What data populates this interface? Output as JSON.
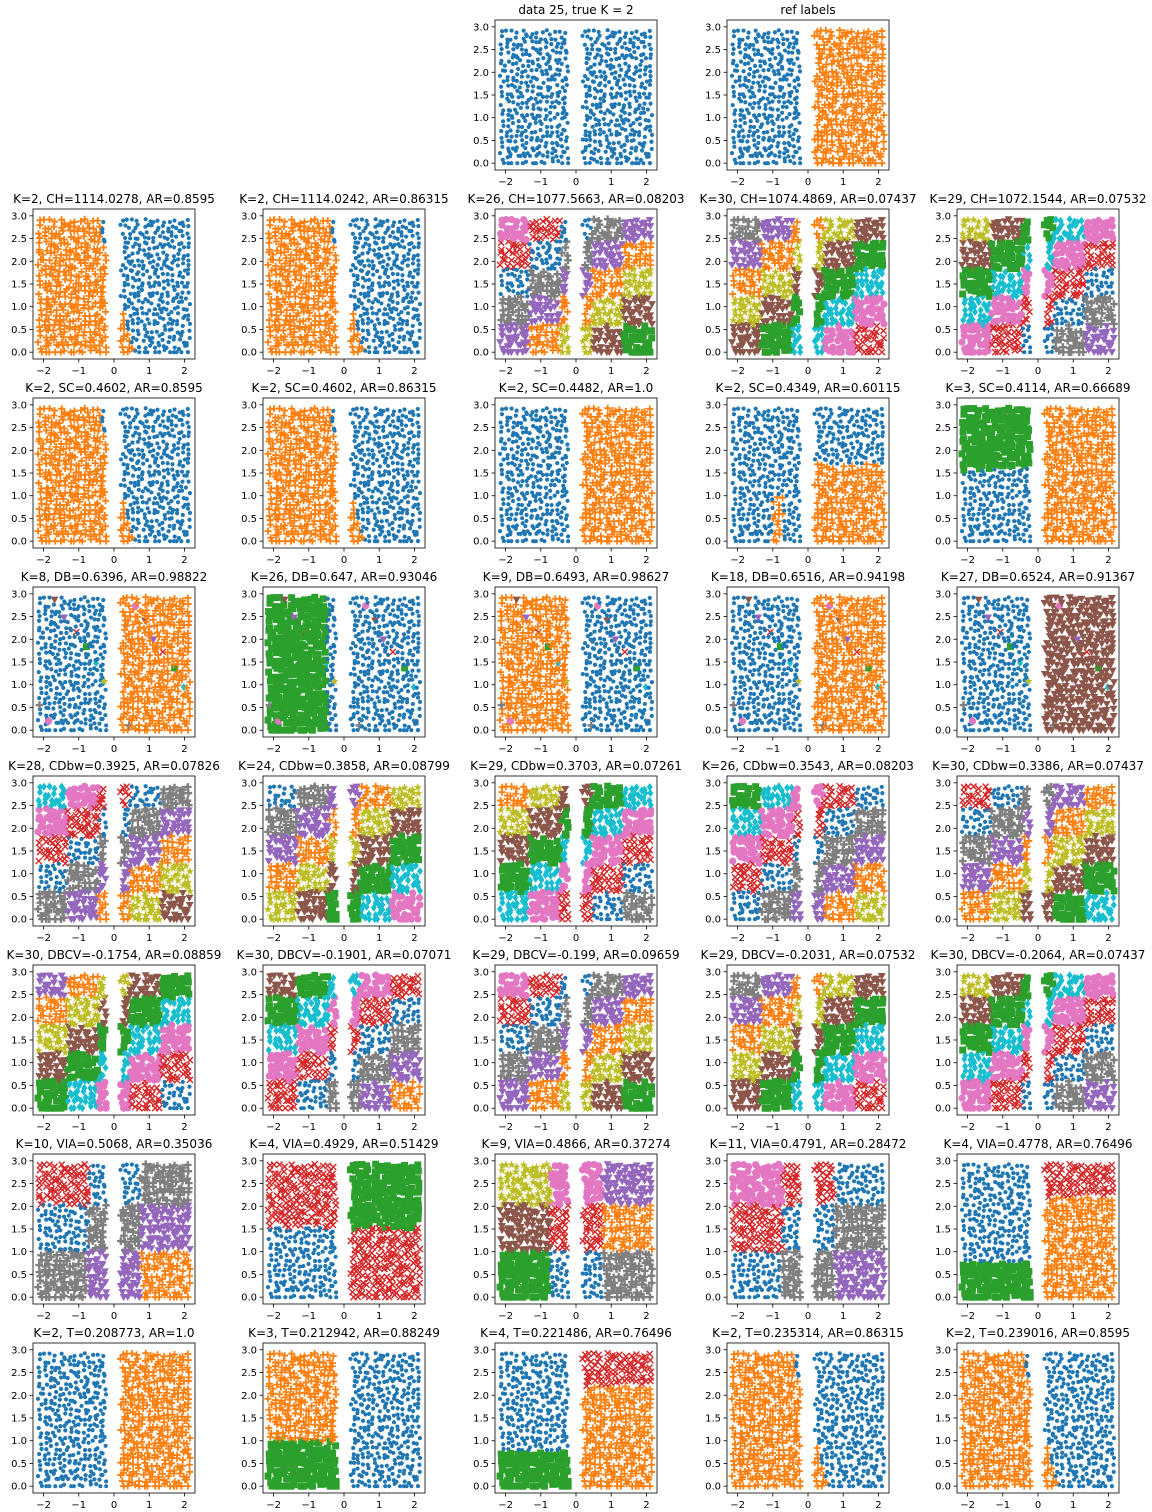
{
  "figure": {
    "axis_x_range": [
      -2.3,
      2.3
    ],
    "axis_y_range": [
      -0.15,
      3.15
    ]
  },
  "palette": [
    "#1f77b4",
    "#ff7f0e",
    "#2ca02c",
    "#d62728",
    "#9467bd",
    "#8c564b",
    "#e377c2",
    "#7f7f7f",
    "#bcbd22",
    "#17becf"
  ],
  "chart_data": [
    {
      "type": "scatter",
      "title": "data 25, true K = 2",
      "clusters": 1,
      "partition": "single",
      "xlim": [
        -2.3,
        2.3
      ],
      "ylim": [
        -0.15,
        3.15
      ],
      "xticks": [
        "−2",
        "−1",
        "0",
        "1",
        "2"
      ],
      "yticks": [
        "0.0",
        "0.5",
        "1.0",
        "1.5",
        "2.0",
        "2.5",
        "3.0"
      ]
    },
    {
      "type": "scatter",
      "title": "ref labels",
      "clusters": 2,
      "partition": "ref",
      "xlim": [
        -2.3,
        2.3
      ],
      "ylim": [
        -0.15,
        3.15
      ],
      "xticks": [
        "−2",
        "−1",
        "0",
        "1",
        "2"
      ],
      "yticks": [
        "0.0",
        "0.5",
        "1.0",
        "1.5",
        "2.0",
        "2.5",
        "3.0"
      ]
    },
    {
      "type": "scatter",
      "title": "K=2, CH=1114.0278, AR=0.8595",
      "clusters": 2,
      "partition": "diagA",
      "xlim": [
        -2.3,
        2.3
      ],
      "ylim": [
        -0.15,
        3.15
      ],
      "xticks": [
        "−2",
        "−1",
        "0",
        "1",
        "2"
      ],
      "yticks": [
        "0.0",
        "0.5",
        "1.0",
        "1.5",
        "2.0",
        "2.5",
        "3.0"
      ]
    },
    {
      "type": "scatter",
      "title": "K=2, CH=1114.0242, AR=0.86315",
      "clusters": 2,
      "partition": "diagA",
      "xlim": [
        -2.3,
        2.3
      ],
      "ylim": [
        -0.15,
        3.15
      ],
      "xticks": [
        "−2",
        "−1",
        "0",
        "1",
        "2"
      ],
      "yticks": [
        "0.0",
        "0.5",
        "1.0",
        "1.5",
        "2.0",
        "2.5",
        "3.0"
      ]
    },
    {
      "type": "scatter",
      "title": "K=26, CH=1077.5663, AR=0.08203",
      "clusters": 26,
      "partition": "grid",
      "xlim": [
        -2.3,
        2.3
      ],
      "ylim": [
        -0.15,
        3.15
      ],
      "xticks": [
        "−2",
        "−1",
        "0",
        "1",
        "2"
      ],
      "yticks": [
        "0.0",
        "0.5",
        "1.0",
        "1.5",
        "2.0",
        "2.5",
        "3.0"
      ]
    },
    {
      "type": "scatter",
      "title": "K=30, CH=1074.4869, AR=0.07437",
      "clusters": 30,
      "partition": "grid",
      "xlim": [
        -2.3,
        2.3
      ],
      "ylim": [
        -0.15,
        3.15
      ],
      "xticks": [
        "−2",
        "−1",
        "0",
        "1",
        "2"
      ],
      "yticks": [
        "0.0",
        "0.5",
        "1.0",
        "1.5",
        "2.0",
        "2.5",
        "3.0"
      ]
    },
    {
      "type": "scatter",
      "title": "K=29, CH=1072.1544, AR=0.07532",
      "clusters": 29,
      "partition": "grid",
      "xlim": [
        -2.3,
        2.3
      ],
      "ylim": [
        -0.15,
        3.15
      ],
      "xticks": [
        "−2",
        "−1",
        "0",
        "1",
        "2"
      ],
      "yticks": [
        "0.0",
        "0.5",
        "1.0",
        "1.5",
        "2.0",
        "2.5",
        "3.0"
      ]
    },
    {
      "type": "scatter",
      "title": "K=2, SC=0.4602, AR=0.8595",
      "clusters": 2,
      "partition": "diagA",
      "xlim": [
        -2.3,
        2.3
      ],
      "ylim": [
        -0.15,
        3.15
      ],
      "xticks": [
        "−2",
        "−1",
        "0",
        "1",
        "2"
      ],
      "yticks": [
        "0.0",
        "0.5",
        "1.0",
        "1.5",
        "2.0",
        "2.5",
        "3.0"
      ]
    },
    {
      "type": "scatter",
      "title": "K=2, SC=0.4602, AR=0.86315",
      "clusters": 2,
      "partition": "diagA",
      "xlim": [
        -2.3,
        2.3
      ],
      "ylim": [
        -0.15,
        3.15
      ],
      "xticks": [
        "−2",
        "−1",
        "0",
        "1",
        "2"
      ],
      "yticks": [
        "0.0",
        "0.5",
        "1.0",
        "1.5",
        "2.0",
        "2.5",
        "3.0"
      ]
    },
    {
      "type": "scatter",
      "title": "K=2, SC=0.4482, AR=1.0",
      "clusters": 2,
      "partition": "ref",
      "xlim": [
        -2.3,
        2.3
      ],
      "ylim": [
        -0.15,
        3.15
      ],
      "xticks": [
        "−2",
        "−1",
        "0",
        "1",
        "2"
      ],
      "yticks": [
        "0.0",
        "0.5",
        "1.0",
        "1.5",
        "2.0",
        "2.5",
        "3.0"
      ]
    },
    {
      "type": "scatter",
      "title": "K=2, SC=0.4349, AR=0.60115",
      "clusters": 2,
      "partition": "step",
      "xlim": [
        -2.3,
        2.3
      ],
      "ylim": [
        -0.15,
        3.15
      ],
      "xticks": [
        "−2",
        "−1",
        "0",
        "1",
        "2"
      ],
      "yticks": [
        "0.0",
        "0.5",
        "1.0",
        "1.5",
        "2.0",
        "2.5",
        "3.0"
      ]
    },
    {
      "type": "scatter",
      "title": "K=3, SC=0.4114, AR=0.66689",
      "clusters": 3,
      "partition": "wedge",
      "xlim": [
        -2.3,
        2.3
      ],
      "ylim": [
        -0.15,
        3.15
      ],
      "xticks": [
        "−2",
        "−1",
        "0",
        "1",
        "2"
      ],
      "yticks": [
        "0.0",
        "0.5",
        "1.0",
        "1.5",
        "2.0",
        "2.5",
        "3.0"
      ]
    },
    {
      "type": "scatter",
      "title": "K=8, DB=0.6396, AR=0.98822",
      "clusters": 8,
      "partition": "refOut",
      "xlim": [
        -2.3,
        2.3
      ],
      "ylim": [
        -0.15,
        3.15
      ],
      "xticks": [
        "−2",
        "−1",
        "0",
        "1",
        "2"
      ],
      "yticks": [
        "0.0",
        "0.5",
        "1.0",
        "1.5",
        "2.0",
        "2.5",
        "3.0"
      ]
    },
    {
      "type": "scatter",
      "title": "K=26, DB=0.647, AR=0.93046",
      "clusters": 26,
      "partition": "leftGreen",
      "xlim": [
        -2.3,
        2.3
      ],
      "ylim": [
        -0.15,
        3.15
      ],
      "xticks": [
        "−2",
        "−1",
        "0",
        "1",
        "2"
      ],
      "yticks": [
        "0.0",
        "0.5",
        "1.0",
        "1.5",
        "2.0",
        "2.5",
        "3.0"
      ]
    },
    {
      "type": "scatter",
      "title": "K=9, DB=0.6493, AR=0.98627",
      "clusters": 9,
      "partition": "refSwapOut",
      "xlim": [
        -2.3,
        2.3
      ],
      "ylim": [
        -0.15,
        3.15
      ],
      "xticks": [
        "−2",
        "−1",
        "0",
        "1",
        "2"
      ],
      "yticks": [
        "0.0",
        "0.5",
        "1.0",
        "1.5",
        "2.0",
        "2.5",
        "3.0"
      ]
    },
    {
      "type": "scatter",
      "title": "K=18, DB=0.6516, AR=0.94198",
      "clusters": 18,
      "partition": "refOut",
      "xlim": [
        -2.3,
        2.3
      ],
      "ylim": [
        -0.15,
        3.15
      ],
      "xticks": [
        "−2",
        "−1",
        "0",
        "1",
        "2"
      ],
      "yticks": [
        "0.0",
        "0.5",
        "1.0",
        "1.5",
        "2.0",
        "2.5",
        "3.0"
      ]
    },
    {
      "type": "scatter",
      "title": "K=27, DB=0.6524, AR=0.91367",
      "clusters": 27,
      "partition": "rightBrown",
      "xlim": [
        -2.3,
        2.3
      ],
      "ylim": [
        -0.15,
        3.15
      ],
      "xticks": [
        "−2",
        "−1",
        "0",
        "1",
        "2"
      ],
      "yticks": [
        "0.0",
        "0.5",
        "1.0",
        "1.5",
        "2.0",
        "2.5",
        "3.0"
      ]
    },
    {
      "type": "scatter",
      "title": "K=28, CDbw=0.3925, AR=0.07826",
      "clusters": 28,
      "partition": "grid",
      "xlim": [
        -2.3,
        2.3
      ],
      "ylim": [
        -0.15,
        3.15
      ],
      "xticks": [
        "−2",
        "−1",
        "0",
        "1",
        "2"
      ],
      "yticks": [
        "0.0",
        "0.5",
        "1.0",
        "1.5",
        "2.0",
        "2.5",
        "3.0"
      ]
    },
    {
      "type": "scatter",
      "title": "K=24, CDbw=0.3858, AR=0.08799",
      "clusters": 24,
      "partition": "grid",
      "xlim": [
        -2.3,
        2.3
      ],
      "ylim": [
        -0.15,
        3.15
      ],
      "xticks": [
        "−2",
        "−1",
        "0",
        "1",
        "2"
      ],
      "yticks": [
        "0.0",
        "0.5",
        "1.0",
        "1.5",
        "2.0",
        "2.5",
        "3.0"
      ]
    },
    {
      "type": "scatter",
      "title": "K=29, CDbw=0.3703, AR=0.07261",
      "clusters": 29,
      "partition": "grid",
      "xlim": [
        -2.3,
        2.3
      ],
      "ylim": [
        -0.15,
        3.15
      ],
      "xticks": [
        "−2",
        "−1",
        "0",
        "1",
        "2"
      ],
      "yticks": [
        "0.0",
        "0.5",
        "1.0",
        "1.5",
        "2.0",
        "2.5",
        "3.0"
      ]
    },
    {
      "type": "scatter",
      "title": "K=26, CDbw=0.3543, AR=0.08203",
      "clusters": 26,
      "partition": "grid",
      "xlim": [
        -2.3,
        2.3
      ],
      "ylim": [
        -0.15,
        3.15
      ],
      "xticks": [
        "−2",
        "−1",
        "0",
        "1",
        "2"
      ],
      "yticks": [
        "0.0",
        "0.5",
        "1.0",
        "1.5",
        "2.0",
        "2.5",
        "3.0"
      ]
    },
    {
      "type": "scatter",
      "title": "K=30, CDbw=0.3386, AR=0.07437",
      "clusters": 30,
      "partition": "grid",
      "xlim": [
        -2.3,
        2.3
      ],
      "ylim": [
        -0.15,
        3.15
      ],
      "xticks": [
        "−2",
        "−1",
        "0",
        "1",
        "2"
      ],
      "yticks": [
        "0.0",
        "0.5",
        "1.0",
        "1.5",
        "2.0",
        "2.5",
        "3.0"
      ]
    },
    {
      "type": "scatter",
      "title": "K=30, DBCV=-0.1754, AR=0.08859",
      "clusters": 30,
      "partition": "grid",
      "xlim": [
        -2.3,
        2.3
      ],
      "ylim": [
        -0.15,
        3.15
      ],
      "xticks": [
        "−2",
        "−1",
        "0",
        "1",
        "2"
      ],
      "yticks": [
        "0.0",
        "0.5",
        "1.0",
        "1.5",
        "2.0",
        "2.5",
        "3.0"
      ]
    },
    {
      "type": "scatter",
      "title": "K=30, DBCV=-0.1901, AR=0.07071",
      "clusters": 30,
      "partition": "grid",
      "xlim": [
        -2.3,
        2.3
      ],
      "ylim": [
        -0.15,
        3.15
      ],
      "xticks": [
        "−2",
        "−1",
        "0",
        "1",
        "2"
      ],
      "yticks": [
        "0.0",
        "0.5",
        "1.0",
        "1.5",
        "2.0",
        "2.5",
        "3.0"
      ]
    },
    {
      "type": "scatter",
      "title": "K=29, DBCV=-0.199, AR=0.09659",
      "clusters": 29,
      "partition": "grid",
      "xlim": [
        -2.3,
        2.3
      ],
      "ylim": [
        -0.15,
        3.15
      ],
      "xticks": [
        "−2",
        "−1",
        "0",
        "1",
        "2"
      ],
      "yticks": [
        "0.0",
        "0.5",
        "1.0",
        "1.5",
        "2.0",
        "2.5",
        "3.0"
      ]
    },
    {
      "type": "scatter",
      "title": "K=29, DBCV=-0.2031, AR=0.07532",
      "clusters": 29,
      "partition": "grid",
      "xlim": [
        -2.3,
        2.3
      ],
      "ylim": [
        -0.15,
        3.15
      ],
      "xticks": [
        "−2",
        "−1",
        "0",
        "1",
        "2"
      ],
      "yticks": [
        "0.0",
        "0.5",
        "1.0",
        "1.5",
        "2.0",
        "2.5",
        "3.0"
      ]
    },
    {
      "type": "scatter",
      "title": "K=30, DBCV=-0.2064, AR=0.07437",
      "clusters": 30,
      "partition": "grid",
      "xlim": [
        -2.3,
        2.3
      ],
      "ylim": [
        -0.15,
        3.15
      ],
      "xticks": [
        "−2",
        "−1",
        "0",
        "1",
        "2"
      ],
      "yticks": [
        "0.0",
        "0.5",
        "1.0",
        "1.5",
        "2.0",
        "2.5",
        "3.0"
      ]
    },
    {
      "type": "scatter",
      "title": "K=10, VIA=0.5068, AR=0.35036",
      "clusters": 10,
      "partition": "grid",
      "xlim": [
        -2.3,
        2.3
      ],
      "ylim": [
        -0.15,
        3.15
      ],
      "xticks": [
        "−2",
        "−1",
        "0",
        "1",
        "2"
      ],
      "yticks": [
        "0.0",
        "0.5",
        "1.0",
        "1.5",
        "2.0",
        "2.5",
        "3.0"
      ]
    },
    {
      "type": "scatter",
      "title": "K=4, VIA=0.4929, AR=0.51429",
      "clusters": 4,
      "partition": "grid",
      "xlim": [
        -2.3,
        2.3
      ],
      "ylim": [
        -0.15,
        3.15
      ],
      "xticks": [
        "−2",
        "−1",
        "0",
        "1",
        "2"
      ],
      "yticks": [
        "0.0",
        "0.5",
        "1.0",
        "1.5",
        "2.0",
        "2.5",
        "3.0"
      ]
    },
    {
      "type": "scatter",
      "title": "K=9, VIA=0.4866, AR=0.37274",
      "clusters": 9,
      "partition": "grid",
      "xlim": [
        -2.3,
        2.3
      ],
      "ylim": [
        -0.15,
        3.15
      ],
      "xticks": [
        "−2",
        "−1",
        "0",
        "1",
        "2"
      ],
      "yticks": [
        "0.0",
        "0.5",
        "1.0",
        "1.5",
        "2.0",
        "2.5",
        "3.0"
      ]
    },
    {
      "type": "scatter",
      "title": "K=11, VIA=0.4791, AR=0.28472",
      "clusters": 11,
      "partition": "grid",
      "xlim": [
        -2.3,
        2.3
      ],
      "ylim": [
        -0.15,
        3.15
      ],
      "xticks": [
        "−2",
        "−1",
        "0",
        "1",
        "2"
      ],
      "yticks": [
        "0.0",
        "0.5",
        "1.0",
        "1.5",
        "2.0",
        "2.5",
        "3.0"
      ]
    },
    {
      "type": "scatter",
      "title": "K=4, VIA=0.4778, AR=0.76496",
      "clusters": 4,
      "partition": "four",
      "xlim": [
        -2.3,
        2.3
      ],
      "ylim": [
        -0.15,
        3.15
      ],
      "xticks": [
        "−2",
        "−1",
        "0",
        "1",
        "2"
      ],
      "yticks": [
        "0.0",
        "0.5",
        "1.0",
        "1.5",
        "2.0",
        "2.5",
        "3.0"
      ]
    },
    {
      "type": "scatter",
      "title": "K=2, T=0.208773, AR=1.0",
      "clusters": 2,
      "partition": "ref",
      "xlim": [
        -2.3,
        2.3
      ],
      "ylim": [
        -0.15,
        3.15
      ],
      "xticks": [
        "−2",
        "−1",
        "0",
        "1",
        "2"
      ],
      "yticks": [
        "0.0",
        "0.5",
        "1.0",
        "1.5",
        "2.0",
        "2.5",
        "3.0"
      ]
    },
    {
      "type": "scatter",
      "title": "K=3, T=0.212942, AR=0.88249",
      "clusters": 3,
      "partition": "three",
      "xlim": [
        -2.3,
        2.3
      ],
      "ylim": [
        -0.15,
        3.15
      ],
      "xticks": [
        "−2",
        "−1",
        "0",
        "1",
        "2"
      ],
      "yticks": [
        "0.0",
        "0.5",
        "1.0",
        "1.5",
        "2.0",
        "2.5",
        "3.0"
      ]
    },
    {
      "type": "scatter",
      "title": "K=4, T=0.221486, AR=0.76496",
      "clusters": 4,
      "partition": "four",
      "xlim": [
        -2.3,
        2.3
      ],
      "ylim": [
        -0.15,
        3.15
      ],
      "xticks": [
        "−2",
        "−1",
        "0",
        "1",
        "2"
      ],
      "yticks": [
        "0.0",
        "0.5",
        "1.0",
        "1.5",
        "2.0",
        "2.5",
        "3.0"
      ]
    },
    {
      "type": "scatter",
      "title": "K=2, T=0.235314, AR=0.86315",
      "clusters": 2,
      "partition": "diagA",
      "xlim": [
        -2.3,
        2.3
      ],
      "ylim": [
        -0.15,
        3.15
      ],
      "xticks": [
        "−2",
        "−1",
        "0",
        "1",
        "2"
      ],
      "yticks": [
        "0.0",
        "0.5",
        "1.0",
        "1.5",
        "2.0",
        "2.5",
        "3.0"
      ]
    },
    {
      "type": "scatter",
      "title": "K=2, T=0.239016, AR=0.8595",
      "clusters": 2,
      "partition": "diagA",
      "xlim": [
        -2.3,
        2.3
      ],
      "ylim": [
        -0.15,
        3.15
      ],
      "xticks": [
        "−2",
        "−1",
        "0",
        "1",
        "2"
      ],
      "yticks": [
        "0.0",
        "0.5",
        "1.0",
        "1.5",
        "2.0",
        "2.5",
        "3.0"
      ]
    }
  ]
}
